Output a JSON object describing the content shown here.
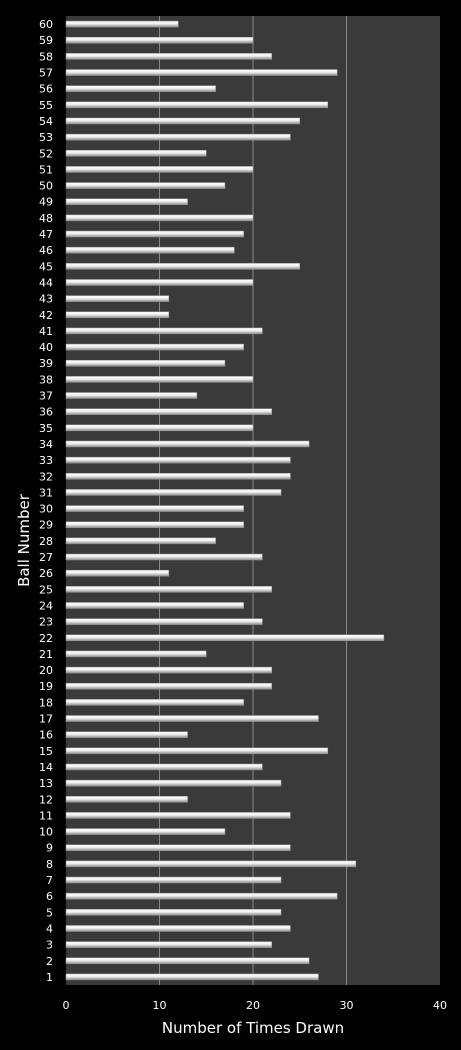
{
  "chart_data": {
    "type": "bar",
    "orientation": "horizontal",
    "title": "",
    "xlabel": "Number of Times Drawn",
    "ylabel": "Ball Number",
    "xlim": [
      0,
      40
    ],
    "xticks": [
      "0",
      "10",
      "20",
      "30",
      "40"
    ],
    "grid": true,
    "legend": "none",
    "categories": [
      "1",
      "2",
      "3",
      "4",
      "5",
      "6",
      "7",
      "8",
      "9",
      "10",
      "11",
      "12",
      "13",
      "14",
      "15",
      "16",
      "17",
      "18",
      "19",
      "20",
      "21",
      "22",
      "23",
      "24",
      "25",
      "26",
      "27",
      "28",
      "29",
      "30",
      "31",
      "32",
      "33",
      "34",
      "35",
      "36",
      "37",
      "38",
      "39",
      "40",
      "41",
      "42",
      "43",
      "44",
      "45",
      "46",
      "47",
      "48",
      "49",
      "50",
      "51",
      "52",
      "53",
      "54",
      "55",
      "56",
      "57",
      "58",
      "59",
      "60"
    ],
    "values": [
      27,
      26,
      22,
      24,
      23,
      29,
      23,
      31,
      24,
      17,
      24,
      13,
      23,
      21,
      28,
      13,
      27,
      19,
      22,
      22,
      15,
      34,
      21,
      19,
      22,
      11,
      21,
      16,
      19,
      19,
      23,
      24,
      24,
      26,
      20,
      22,
      14,
      20,
      17,
      19,
      21,
      11,
      11,
      20,
      25,
      18,
      19,
      20,
      13,
      17,
      20,
      15,
      24,
      25,
      28,
      16,
      29,
      22,
      20,
      12
    ],
    "colors": {
      "background": "#000000",
      "plot_area": "#3a3a3a",
      "gridline": "#8a8a8a",
      "bar": "#f2f2f2",
      "bar_shade": "#9a9a9a",
      "text": "#ffffff"
    }
  }
}
